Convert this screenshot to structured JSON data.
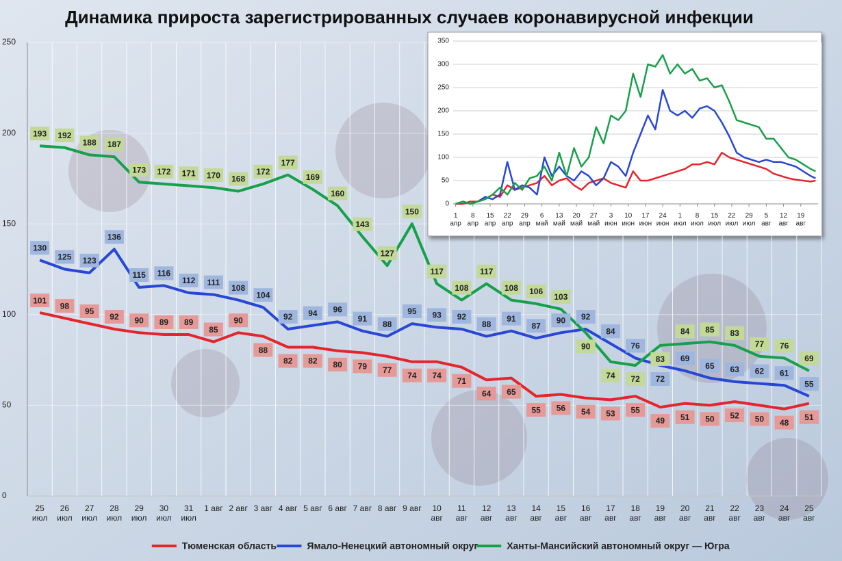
{
  "chart_data": [
    {
      "type": "line",
      "title": "Динамика прироста зарегистрированных случаев коронавирусной инфекции",
      "categories": [
        "25\nиюл",
        "26\nиюл",
        "27\nиюл",
        "28\nиюл",
        "29\nиюл",
        "30\nиюл",
        "31\nиюл",
        "1 авг",
        "2 авг",
        "3 авг",
        "4 авг",
        "5 авг",
        "6 авг",
        "7 авг",
        "8 авг",
        "9 авг",
        "10\nавг",
        "11\nавг",
        "12\nавг",
        "13\nавг",
        "14\nавг",
        "15\nавг",
        "16\nавг",
        "17\nавг",
        "18\nавг",
        "19\nавг",
        "20\nавг",
        "21\nавг",
        "22\nавг",
        "23\nавг",
        "24\nавг",
        "25\nавг"
      ],
      "series": [
        {
          "name": "Тюменская область",
          "color": "#e5242b",
          "label_color": "#e59a98",
          "values": [
            101,
            98,
            95,
            92,
            90,
            89,
            89,
            85,
            90,
            88,
            82,
            82,
            80,
            79,
            77,
            74,
            74,
            71,
            64,
            65,
            55,
            56,
            54,
            53,
            55,
            49,
            51,
            50,
            52,
            50,
            48,
            51
          ]
        },
        {
          "name": "Ямало-Ненецкий автономный округ",
          "color": "#2747d6",
          "label_color": "#9fb6de",
          "values": [
            130,
            125,
            123,
            136,
            115,
            116,
            112,
            111,
            108,
            104,
            92,
            94,
            96,
            91,
            88,
            95,
            93,
            92,
            88,
            91,
            87,
            90,
            92,
            84,
            76,
            72,
            69,
            65,
            63,
            62,
            61,
            55
          ]
        },
        {
          "name": "Ханты-Мансийский автономный округ — Югра",
          "color": "#16a04a",
          "label_color": "#c3d998",
          "values": [
            193,
            192,
            188,
            187,
            173,
            172,
            171,
            170,
            168,
            172,
            177,
            169,
            160,
            143,
            127,
            150,
            117,
            108,
            117,
            108,
            106,
            103,
            90,
            74,
            72,
            83,
            84,
            85,
            83,
            77,
            76,
            69
          ]
        }
      ],
      "ylim": [
        0,
        250
      ],
      "yticks": [
        0,
        50,
        100,
        150,
        200,
        250
      ],
      "grid": true,
      "legend": "bottom"
    },
    {
      "type": "line",
      "x": [
        0,
        3,
        6,
        9,
        12,
        15,
        18,
        21,
        24,
        27,
        30,
        33,
        36,
        39,
        42,
        45,
        48,
        51,
        54,
        57,
        60,
        63,
        66,
        69,
        72,
        75,
        78,
        81,
        84,
        87,
        90,
        93,
        96,
        99,
        102,
        105,
        108,
        111,
        114,
        117,
        120,
        123,
        126,
        129,
        132,
        135,
        138,
        141,
        144,
        146
      ],
      "xlim": [
        -1,
        147
      ],
      "xticks": [
        {
          "value": 0,
          "label": "1\nапр"
        },
        {
          "value": 7,
          "label": "8\nапр"
        },
        {
          "value": 14,
          "label": "15\nапр"
        },
        {
          "value": 21,
          "label": "22\nапр"
        },
        {
          "value": 28,
          "label": "29\nапр"
        },
        {
          "value": 35,
          "label": "6\nмай"
        },
        {
          "value": 42,
          "label": "13\nмай"
        },
        {
          "value": 49,
          "label": "20\nмай"
        },
        {
          "value": 56,
          "label": "27\nмай"
        },
        {
          "value": 63,
          "label": "3\nиюн"
        },
        {
          "value": 70,
          "label": "10\nиюн"
        },
        {
          "value": 77,
          "label": "17\nиюн"
        },
        {
          "value": 84,
          "label": "24\nиюн"
        },
        {
          "value": 91,
          "label": "1\nиюл"
        },
        {
          "value": 98,
          "label": "8\nиюл"
        },
        {
          "value": 105,
          "label": "15\nиюл"
        },
        {
          "value": 112,
          "label": "22\nиюл"
        },
        {
          "value": 119,
          "label": "29\nиюл"
        },
        {
          "value": 126,
          "label": "5\nавг"
        },
        {
          "value": 133,
          "label": "12\nавг"
        },
        {
          "value": 140,
          "label": "19\nавг"
        }
      ],
      "ylim": [
        0,
        350
      ],
      "yticks": [
        0,
        50,
        100,
        150,
        200,
        250,
        300,
        350
      ],
      "grid": true,
      "series": [
        {
          "color": "#e5242b",
          "values": [
            0,
            0,
            5,
            5,
            10,
            20,
            15,
            40,
            30,
            35,
            40,
            45,
            60,
            40,
            50,
            55,
            40,
            30,
            45,
            50,
            55,
            45,
            40,
            35,
            70,
            50,
            50,
            55,
            60,
            65,
            70,
            75,
            85,
            85,
            90,
            85,
            110,
            100,
            95,
            90,
            85,
            80,
            75,
            65,
            60,
            55,
            52,
            50,
            48,
            50
          ]
        },
        {
          "color": "#2747d6",
          "values": [
            0,
            5,
            0,
            5,
            15,
            10,
            20,
            90,
            30,
            40,
            35,
            20,
            100,
            60,
            80,
            60,
            50,
            70,
            60,
            40,
            55,
            90,
            80,
            60,
            110,
            150,
            190,
            160,
            245,
            200,
            190,
            200,
            185,
            205,
            210,
            200,
            175,
            145,
            110,
            100,
            95,
            90,
            95,
            90,
            90,
            85,
            80,
            70,
            60,
            55
          ]
        },
        {
          "color": "#16a04a",
          "values": [
            0,
            5,
            0,
            5,
            10,
            20,
            35,
            20,
            45,
            30,
            55,
            60,
            80,
            50,
            110,
            60,
            120,
            80,
            100,
            165,
            130,
            190,
            180,
            200,
            280,
            230,
            300,
            295,
            320,
            280,
            300,
            280,
            290,
            265,
            270,
            250,
            255,
            220,
            180,
            175,
            170,
            165,
            140,
            140,
            120,
            100,
            95,
            85,
            75,
            70
          ]
        }
      ]
    }
  ]
}
